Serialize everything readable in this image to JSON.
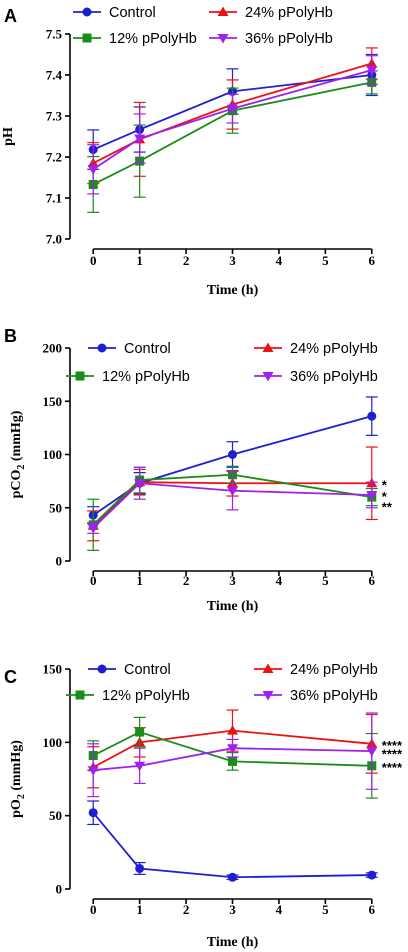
{
  "colors": {
    "Control": "#1f1fd1",
    "24% pPolyHb": "#ee1111",
    "12% pPolyHb": "#1a8c1a",
    "36% pPolyHb": "#a020f0"
  },
  "markers": {
    "Control": "circle",
    "24% pPolyHb": "triangle-up",
    "12% pPolyHb": "square",
    "36% pPolyHb": "triangle-down"
  },
  "chart_data": [
    {
      "panel": "A",
      "type": "line",
      "xlabel": "Time (h)",
      "ylabel_main": "pH",
      "ylabel_sub": "",
      "ylabel_tail": "",
      "xlim": [
        -0.5,
        6.5
      ],
      "ylim": [
        7.0,
        7.5
      ],
      "xticks": [
        0,
        1,
        2,
        3,
        4,
        5,
        6
      ],
      "yticks": [
        "7.0",
        "7.1",
        "7.2",
        "7.3",
        "7.4",
        "7.5"
      ],
      "x": [
        0,
        1,
        3,
        6
      ],
      "legend": [
        "Control",
        "24% pPolyHb",
        "12% pPolyHb",
        "36% pPolyHb"
      ],
      "series": [
        {
          "name": "Control",
          "values": [
            7.218,
            7.267,
            7.36,
            7.4
          ],
          "errors": [
            0.048,
            0.055,
            0.055,
            0.05
          ]
        },
        {
          "name": "24% pPolyHb",
          "values": [
            7.185,
            7.243,
            7.328,
            7.428
          ],
          "errors": [
            0.05,
            0.09,
            0.06,
            0.038
          ]
        },
        {
          "name": "12% pPolyHb",
          "values": [
            7.133,
            7.19,
            7.313,
            7.382
          ],
          "errors": [
            0.068,
            0.088,
            0.055,
            0.028
          ]
        },
        {
          "name": "36% pPolyHb",
          "values": [
            7.17,
            7.245,
            7.318,
            7.412
          ],
          "errors": [
            0.06,
            0.06,
            0.035,
            0.035
          ]
        }
      ],
      "annotations": []
    },
    {
      "panel": "B",
      "type": "line",
      "xlabel": "Time (h)",
      "ylabel_main": "pCO",
      "ylabel_sub": "2",
      "ylabel_tail": " (mmHg)",
      "xlim": [
        -0.5,
        6.5
      ],
      "ylim": [
        0,
        200
      ],
      "xticks": [
        0,
        1,
        2,
        3,
        4,
        5,
        6
      ],
      "yticks": [
        "0",
        "50",
        "100",
        "150",
        "200"
      ],
      "x": [
        0,
        1,
        3,
        6
      ],
      "legend": [
        "Control",
        "24% pPolyHb",
        "12% pPolyHb",
        "36% pPolyHb"
      ],
      "series": [
        {
          "name": "Control",
          "values": [
            43,
            73,
            100,
            136
          ],
          "errors": [
            8,
            10,
            12,
            18
          ]
        },
        {
          "name": "24% pPolyHb",
          "values": [
            33,
            74,
            73,
            73
          ],
          "errors": [
            14,
            12,
            12,
            34
          ]
        },
        {
          "name": "12% pPolyHb",
          "values": [
            34,
            76,
            81,
            60
          ],
          "errors": [
            24,
            12,
            8,
            8
          ]
        },
        {
          "name": "36% pPolyHb",
          "values": [
            31,
            73,
            66,
            62
          ],
          "errors": [
            5,
            15,
            18,
            12
          ]
        }
      ],
      "annotations": [
        {
          "text": "*",
          "y": 73
        },
        {
          "text": "*",
          "y": 62
        },
        {
          "text": "**",
          "y": 52
        }
      ]
    },
    {
      "panel": "C",
      "type": "line",
      "xlabel": "Time (h)",
      "ylabel_main": "pO",
      "ylabel_sub": "2",
      "ylabel_tail": " (mmHg)",
      "xlim": [
        -0.5,
        6.5
      ],
      "ylim": [
        0,
        150
      ],
      "xticks": [
        0,
        1,
        2,
        3,
        4,
        5,
        6
      ],
      "yticks": [
        "0",
        "50",
        "100",
        "150"
      ],
      "x": [
        0,
        1,
        3,
        6
      ],
      "legend": [
        "Control",
        "24% pPolyHb",
        "12% pPolyHb",
        "36% pPolyHb"
      ],
      "series": [
        {
          "name": "Control",
          "values": [
            52,
            14,
            8,
            9.5
          ],
          "errors": [
            8,
            4,
            1.5,
            1.5
          ]
        },
        {
          "name": "24% pPolyHb",
          "values": [
            83,
            100,
            108,
            99
          ],
          "errors": [
            14,
            10,
            14,
            20
          ]
        },
        {
          "name": "12% pPolyHb",
          "values": [
            91,
            107,
            87,
            84
          ],
          "errors": [
            10,
            10,
            6,
            22
          ]
        },
        {
          "name": "36% pPolyHb",
          "values": [
            81,
            84,
            96,
            94
          ],
          "errors": [
            18,
            12,
            6,
            26
          ]
        }
      ],
      "annotations": [
        {
          "text": "****",
          "y": 99
        },
        {
          "text": "****",
          "y": 93
        },
        {
          "text": "****",
          "y": 84
        }
      ]
    }
  ]
}
